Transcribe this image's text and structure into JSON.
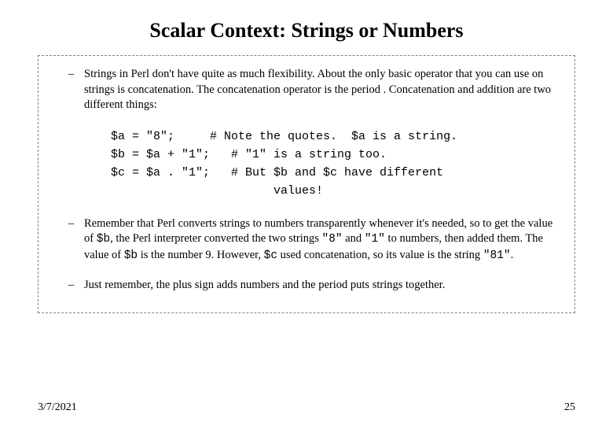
{
  "title": "Scalar Context: Strings or Numbers",
  "bullets": {
    "b1": "Strings in Perl don't have quite as much flexibility. About the only basic operator that you can use on strings is concatenation. The concatenation operator is the period . Concatenation and addition are two different things:",
    "b3_pre": "Remember that Perl converts strings to numbers transparently whenever it's needed, so to get the value of ",
    "b3_var1": "$b",
    "b3_mid1": ", the Perl interpreter converted the two strings   ",
    "b3_q1": "\"8\"",
    "b3_mid2": " and ",
    "b3_q2": "\"1\"",
    "b3_mid3": " to numbers, then added them. The value of ",
    "b3_var2": "$b",
    "b3_mid4": " is the number 9. However, ",
    "b3_var3": "$c",
    "b3_mid5": " used concatenation, so its value is the string  ",
    "b3_q3": "\"81\"",
    "b3_end": ".",
    "b4": "Just remember, the plus sign adds numbers and the period puts strings together."
  },
  "code": {
    "l1": "$a = \"8\";     # Note the quotes.  $a is a string.",
    "l2": "$b = $a + \"1\";   # \"1\" is a string too.",
    "l3": "$c = $a . \"1\";   # But $b and $c have different",
    "l4": "                       values!"
  },
  "footer": {
    "date": "3/7/2021",
    "page": "25"
  },
  "style": {
    "title_fontsize": 26,
    "body_fontsize": 14.5,
    "code_fontsize": 15,
    "footer_fontsize": 14,
    "text_color": "#000000",
    "background_color": "#ffffff",
    "border_color": "#808080",
    "border_style": "dashed",
    "font_body": "Times New Roman",
    "font_code": "Courier New"
  }
}
